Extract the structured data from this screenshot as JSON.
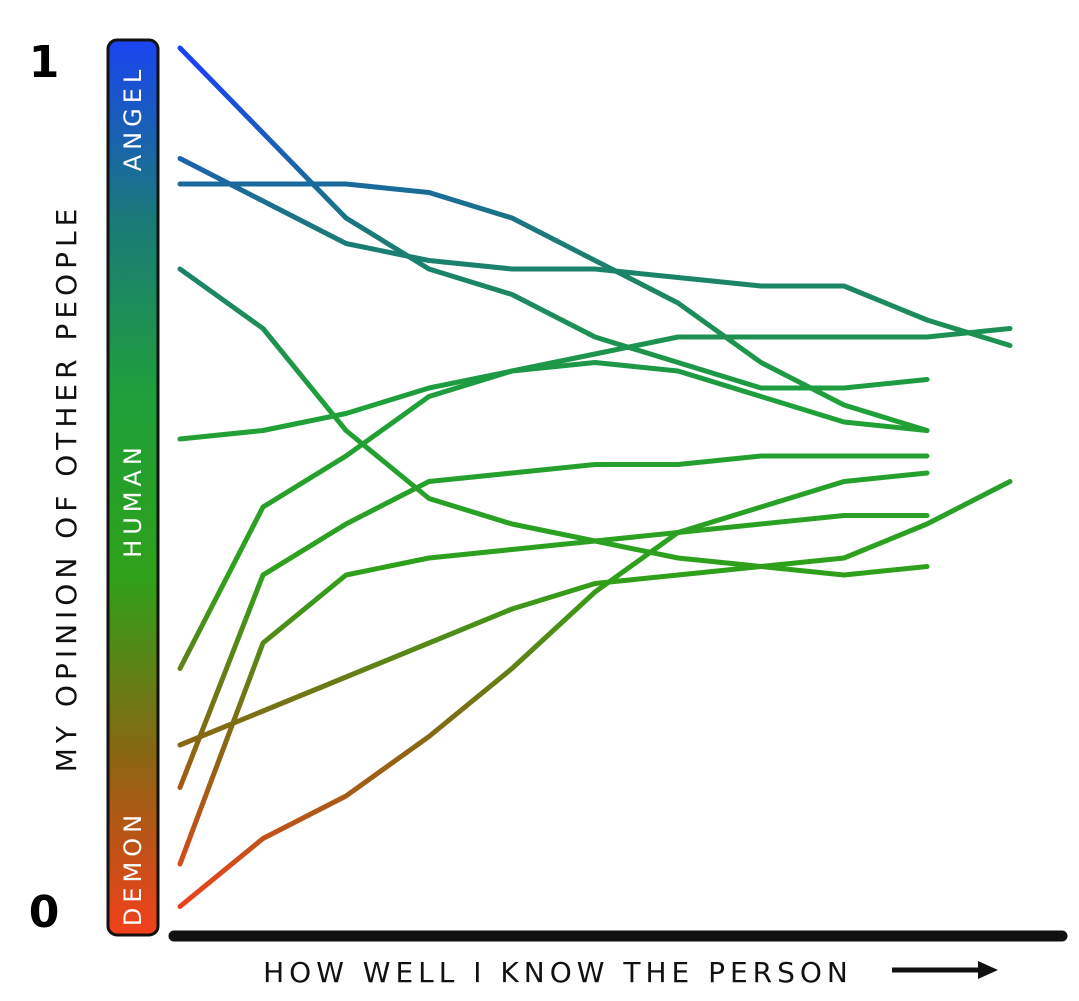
{
  "chart_data": {
    "type": "line",
    "ylabel": "MY OPINION OF OTHER PEOPLE",
    "xlabel": "HOW WELL I KNOW THE PERSON",
    "band_labels": [
      "DEMON",
      "HUMAN",
      "ANGEL"
    ],
    "colormap": [
      "#f2401c",
      "#8a6612",
      "#2fa01a",
      "#1fa03a",
      "#1a7a78",
      "#1a44f2"
    ],
    "xlim": [
      0,
      1
    ],
    "ylim": [
      0,
      1
    ],
    "yticks": [
      0,
      1
    ],
    "x": [
      0,
      0.1,
      0.2,
      0.3,
      0.4,
      0.5,
      0.6,
      0.7,
      0.8,
      0.9,
      1
    ],
    "series": [
      {
        "values": [
          1.02,
          0.92,
          0.82,
          0.76,
          0.73,
          0.68,
          0.65,
          0.62,
          0.62,
          0.63,
          null
        ]
      },
      {
        "values": [
          0.89,
          0.84,
          0.79,
          0.77,
          0.76,
          0.76,
          0.75,
          0.74,
          0.74,
          0.7,
          0.67
        ]
      },
      {
        "values": [
          0.86,
          0.86,
          0.86,
          0.85,
          0.82,
          0.77,
          0.72,
          0.65,
          0.6,
          0.57,
          null
        ]
      },
      {
        "values": [
          0.76,
          0.69,
          0.57,
          0.49,
          0.46,
          0.44,
          0.42,
          0.41,
          0.4,
          0.41,
          null
        ]
      },
      {
        "values": [
          0.56,
          0.57,
          0.59,
          0.62,
          0.64,
          0.66,
          0.68,
          0.68,
          0.68,
          0.68,
          0.69
        ]
      },
      {
        "values": [
          0.29,
          0.48,
          0.54,
          0.61,
          0.64,
          0.65,
          0.64,
          0.61,
          0.58,
          0.57,
          null
        ]
      },
      {
        "values": [
          0.15,
          0.4,
          0.46,
          0.51,
          0.52,
          0.53,
          0.53,
          0.54,
          0.54,
          0.54,
          null
        ]
      },
      {
        "values": [
          0.06,
          0.32,
          0.4,
          0.42,
          0.43,
          0.44,
          0.45,
          0.46,
          0.47,
          0.47,
          null
        ]
      },
      {
        "values": [
          0.2,
          0.24,
          0.28,
          0.32,
          0.36,
          0.39,
          0.4,
          0.41,
          0.42,
          0.46,
          0.51
        ]
      },
      {
        "values": [
          0.01,
          0.09,
          0.14,
          0.21,
          0.29,
          0.38,
          0.45,
          0.48,
          0.51,
          0.52,
          null
        ]
      }
    ]
  }
}
